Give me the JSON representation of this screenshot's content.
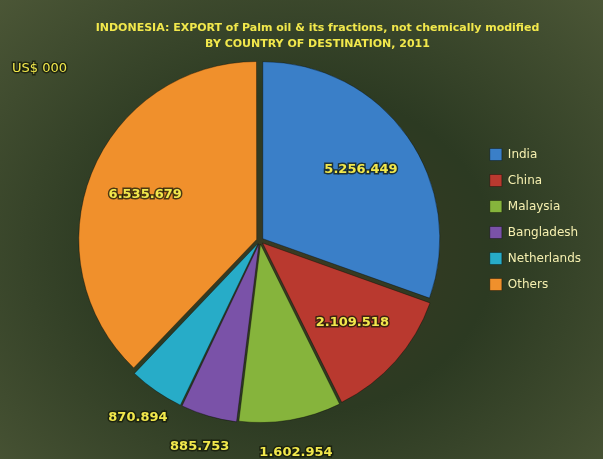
{
  "chart_data": {
    "type": "pie",
    "title": "INDONESIA: EXPORT of Palm oil & its fractions, not chemically modified",
    "subtitle": "BY COUNTRY OF DESTINATION, 2011",
    "annotations": [
      "US$ 000"
    ],
    "categories": [
      "India",
      "China",
      "Malaysia",
      "Bangladesh",
      "Netherlands",
      "Others"
    ],
    "values": [
      5256449,
      2109518,
      1602954,
      885753,
      870894,
      6535679
    ],
    "value_labels": [
      "5.256.449",
      "2.109.518",
      "1.602.954",
      "885.753",
      "870.894",
      "6.535.679"
    ],
    "colors": [
      "#3a7fc8",
      "#b9392f",
      "#86b43c",
      "#7a52a8",
      "#27acc8",
      "#f0902c"
    ],
    "data_labels": true,
    "legend": "right"
  }
}
